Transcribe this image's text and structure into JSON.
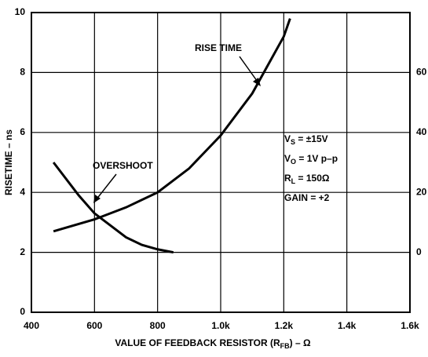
{
  "chart_data": {
    "type": "line",
    "xlabel": {
      "main": "VALUE OF FEEDBACK RESISTOR (R",
      "sub": "FB",
      "rest": ") – Ω"
    },
    "ylabel": "RISETIME – ns",
    "xlim": [
      400,
      1600
    ],
    "xticks": [
      400,
      600,
      800,
      {
        "value": 1000,
        "label": "1.0k"
      },
      {
        "value": 1200,
        "label": "1.2k"
      },
      {
        "value": 1400,
        "label": "1.4k"
      },
      {
        "value": 1600,
        "label": "1.6k"
      }
    ],
    "ylim": [
      0,
      10
    ],
    "yticks": [
      0,
      2,
      4,
      6,
      8,
      10
    ],
    "y2lim": [
      -20,
      80
    ],
    "y2ticks": [
      0,
      20,
      40,
      60
    ],
    "grid": true,
    "series": [
      {
        "name": "RISE TIME",
        "color": "#000000",
        "x": [
          470,
          600,
          700,
          800,
          900,
          1000,
          1100,
          1200,
          1220
        ],
        "values": [
          2.7,
          3.1,
          3.5,
          4.0,
          4.8,
          5.9,
          7.3,
          9.2,
          9.8
        ]
      },
      {
        "name": "OVERSHOOT",
        "color": "#000000",
        "axis": "y2",
        "x": [
          470,
          550,
          600,
          650,
          700,
          750,
          800,
          850
        ],
        "values": [
          30,
          19,
          13,
          9,
          5,
          2.5,
          1,
          0
        ]
      }
    ],
    "conditions": [
      {
        "main": "V",
        "sub": "S",
        "rest": " = ±15V"
      },
      {
        "main": "V",
        "sub": "O",
        "rest": " = 1V p–p"
      },
      {
        "main": "R",
        "sub": "L",
        "rest": " = 150Ω"
      },
      {
        "main": "GAIN = +2",
        "sub": "",
        "rest": ""
      }
    ]
  }
}
